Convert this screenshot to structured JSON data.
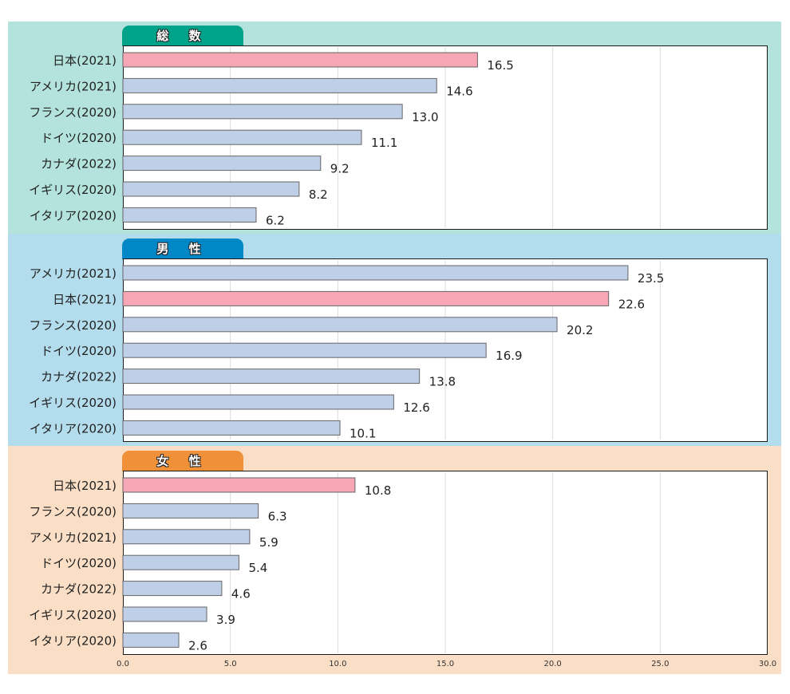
{
  "colors": {
    "panel_total_bg": "#b3e3dc",
    "panel_male_bg": "#b3dcec",
    "panel_female_bg": "#fadfc6",
    "tab_total": "#00a38a",
    "tab_male": "#0088c6",
    "tab_female": "#f0913a",
    "bar_japan": "#f7a6b5",
    "bar_other": "#bfcfe8",
    "bar_stroke": "#666666",
    "grid": "#dddddd"
  },
  "chart_data": [
    {
      "type": "bar",
      "orientation": "horizontal",
      "title": "総 数",
      "categories": [
        "日本(2021)",
        "アメリカ(2021)",
        "フランス(2020)",
        "ドイツ(2020)",
        "カナダ(2022)",
        "イギリス(2020)",
        "イタリア(2020)"
      ],
      "values": [
        16.5,
        14.6,
        13.0,
        11.1,
        9.2,
        8.2,
        6.2
      ],
      "value_labels": [
        "16.5",
        "14.6",
        "13.0",
        "11.1",
        "9.2",
        "8.2",
        "6.2"
      ],
      "highlight": [
        true,
        false,
        false,
        false,
        false,
        false,
        false
      ],
      "xlim": [
        0,
        30
      ],
      "grid": true
    },
    {
      "type": "bar",
      "orientation": "horizontal",
      "title": "男 性",
      "categories": [
        "アメリカ(2021)",
        "日本(2021)",
        "フランス(2020)",
        "ドイツ(2020)",
        "カナダ(2022)",
        "イギリス(2020)",
        "イタリア(2020)"
      ],
      "values": [
        23.5,
        22.6,
        20.2,
        16.9,
        13.8,
        12.6,
        10.1
      ],
      "value_labels": [
        "23.5",
        "22.6",
        "20.2",
        "16.9",
        "13.8",
        "12.6",
        "10.1"
      ],
      "highlight": [
        false,
        true,
        false,
        false,
        false,
        false,
        false
      ],
      "xlim": [
        0,
        30
      ],
      "grid": true
    },
    {
      "type": "bar",
      "orientation": "horizontal",
      "title": "女 性",
      "categories": [
        "日本(2021)",
        "フランス(2020)",
        "アメリカ(2021)",
        "ドイツ(2020)",
        "カナダ(2022)",
        "イギリス(2020)",
        "イタリア(2020)"
      ],
      "values": [
        10.8,
        6.3,
        5.9,
        5.4,
        4.6,
        3.9,
        2.6
      ],
      "value_labels": [
        "10.8",
        "6.3",
        "5.9",
        "5.4",
        "4.6",
        "3.9",
        "2.6"
      ],
      "highlight": [
        true,
        false,
        false,
        false,
        false,
        false,
        false
      ],
      "xlim": [
        0,
        30
      ],
      "grid": true,
      "x_ticks": [
        0,
        5,
        10,
        15,
        20,
        25,
        30
      ],
      "x_tick_labels": [
        "0.0",
        "5.0",
        "10.0",
        "15.0",
        "20.0",
        "25.0",
        "30.0"
      ]
    }
  ]
}
